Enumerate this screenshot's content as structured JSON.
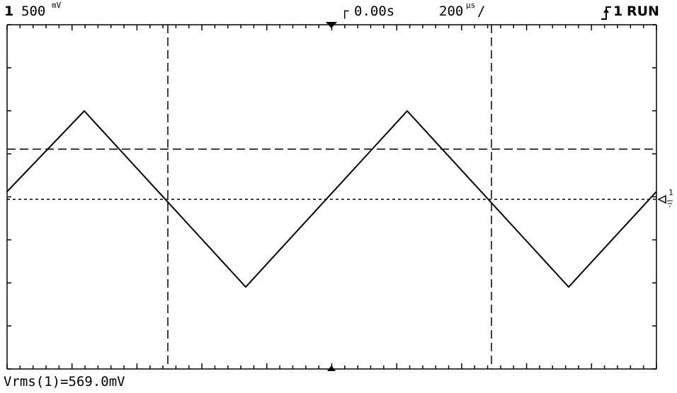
{
  "status_bar": {
    "channel_number": "1",
    "volts_per_div": "500",
    "volts_unit": "mV",
    "trigger_marker": "┌",
    "time_offset": "0.00s",
    "time_per_div": "200",
    "time_unit": "µs",
    "time_slash": "/",
    "trigger_slope_icon": "rising-edge-icon",
    "trigger_source": "1",
    "run_state": "RUN"
  },
  "measurement": {
    "text": "Vrms(1)=569.0mV"
  },
  "channel_marker": {
    "label": "1"
  },
  "waveform": {
    "shape": "triangle",
    "color": "#000000"
  },
  "colors": {
    "background": "#ffffff",
    "trace": "#000000",
    "grid": "#000000"
  }
}
